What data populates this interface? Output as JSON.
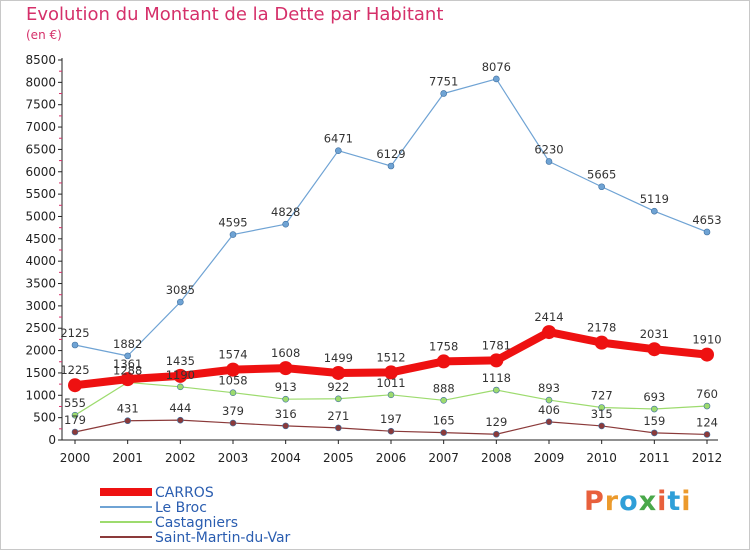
{
  "title": "Evolution du Montant de la Dette par Habitant",
  "subtitle": "(en €)",
  "logo": "Proxiti",
  "chart_data": {
    "type": "line",
    "title": "Evolution du Montant de la Dette par Habitant",
    "subtitle": "(en €)",
    "x": [
      "2000",
      "2001",
      "2002",
      "2003",
      "2004",
      "2005",
      "2006",
      "2007",
      "2008",
      "2009",
      "2010",
      "2011",
      "2012"
    ],
    "ylim": [
      0,
      8500
    ],
    "yticks": [
      0,
      500,
      1000,
      1500,
      2000,
      2500,
      3000,
      3500,
      4000,
      4500,
      5000,
      5500,
      6000,
      6500,
      7000,
      7500,
      8000,
      8500
    ],
    "grid": false,
    "legend_position": "bottom-left",
    "series": [
      {
        "name": "Saint-Martin-du-Var",
        "color": "#8b3a3a",
        "values": [
          179,
          431,
          444,
          379,
          316,
          271,
          197,
          165,
          129,
          406,
          315,
          159,
          124
        ]
      },
      {
        "name": "Castagniers",
        "color": "#9ddb6e",
        "values": [
          555,
          1288,
          1190,
          1058,
          913,
          922,
          1011,
          888,
          1118,
          893,
          727,
          693,
          760
        ]
      },
      {
        "name": "Le Broc",
        "color": "#6fa3d4",
        "values": [
          2125,
          1882,
          3085,
          4595,
          4828,
          6471,
          6129,
          7751,
          8076,
          6230,
          5665,
          5119,
          4653
        ]
      },
      {
        "name": "CARROS",
        "color": "#ee1111",
        "values": [
          1225,
          1361,
          1435,
          1574,
          1608,
          1499,
          1512,
          1758,
          1781,
          2414,
          2178,
          2031,
          1910
        ]
      }
    ]
  },
  "legend": [
    {
      "name": "CARROS",
      "color": "#ee1111",
      "text_color": "#2a5db0"
    },
    {
      "name": "Le Broc",
      "color": "#6fa3d4",
      "text_color": "#2a5db0"
    },
    {
      "name": "Castagniers",
      "color": "#9ddb6e",
      "text_color": "#2a5db0"
    },
    {
      "name": "Saint-Martin-du-Var",
      "color": "#8b3a3a",
      "text_color": "#2a5db0"
    }
  ]
}
